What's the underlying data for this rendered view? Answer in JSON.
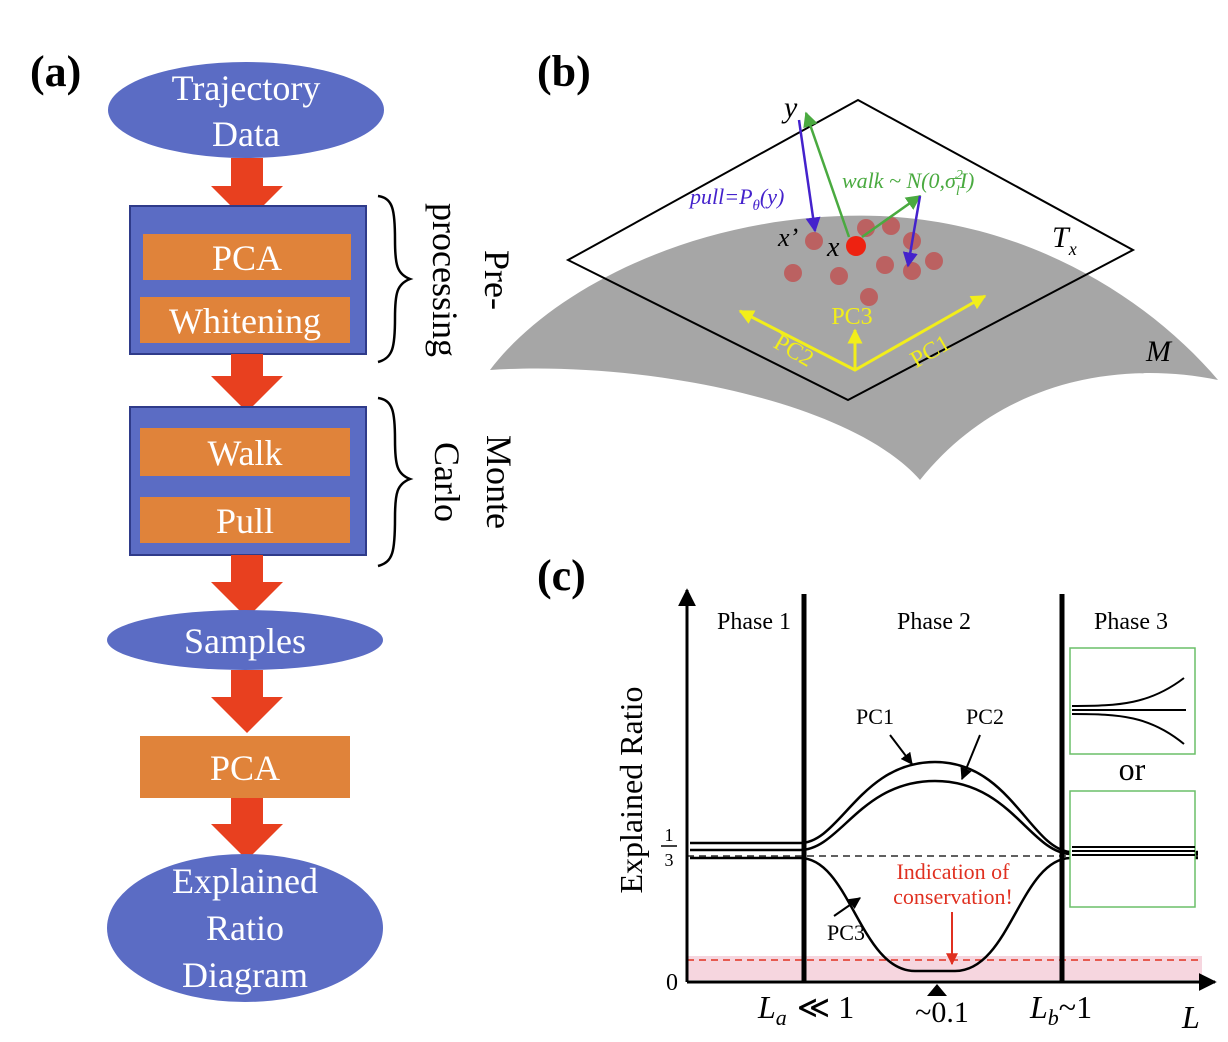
{
  "panels": {
    "a": "(a)",
    "b": "(b)",
    "c": "(c)"
  },
  "flow": {
    "start_line1": "Trajectory",
    "start_line2": "Data",
    "pre_box1": "PCA",
    "pre_box2": "Whitening",
    "pre_label_line1": "Pre-",
    "pre_label_line2": "processing",
    "mc_box1": "Walk",
    "mc_box2": "Pull",
    "mc_label_line1": "Monte",
    "mc_label_line2": "Carlo",
    "samples": "Samples",
    "pca": "PCA",
    "end_line1": "Explained",
    "end_line2": "Ratio",
    "end_line3": "Diagram"
  },
  "manifold": {
    "y_label": "y",
    "x_label": "x",
    "xprime_label": "x’",
    "pull_prefix": "pull=P",
    "pull_sub": "θ",
    "pull_suffix": "(y)",
    "walk_prefix": "walk ~ N(0,σ",
    "walk_sub": "l",
    "walk_sup": "2",
    "walk_suffix": "I)",
    "tangent_label": "T",
    "tangent_sub": "x",
    "manifold_label": "M",
    "pc1": "PC1",
    "pc2": "PC2",
    "pc3": "PC3"
  },
  "phase": {
    "y_axis_label": "Explained Ratio",
    "x_axis_label": "L",
    "phase1": "Phase 1",
    "phase2": "Phase 2",
    "phase3": "Phase 3",
    "y_tick_third_num": "1",
    "y_tick_third_den": "3",
    "y_tick_zero": "0",
    "pc1": "PC1",
    "pc2": "PC2",
    "pc3": "PC3",
    "or": "or",
    "indication_line1": "Indication of",
    "indication_line2": "conservation!",
    "tick_La": "L",
    "tick_La_sub": "a",
    "tick_La_rel": "≪ 1",
    "tick_mid": "~0.1",
    "tick_Lb": "L",
    "tick_Lb_sub": "b",
    "tick_Lb_rel": "~1"
  },
  "colors": {
    "ellipse": "#5b6cc4",
    "box": "#5b6cc4",
    "inner_box": "#e0833a",
    "arrow": "#e8401f",
    "surface": "#a6a6a6",
    "point": "#c05050",
    "center_point": "#ee2211",
    "pull": "#4422cc",
    "walk": "#4aaa40",
    "pc_arrow": "#f2ee1a",
    "indication": "#e03020",
    "band": "#f6d6df",
    "inset_border": "#6abf69"
  }
}
